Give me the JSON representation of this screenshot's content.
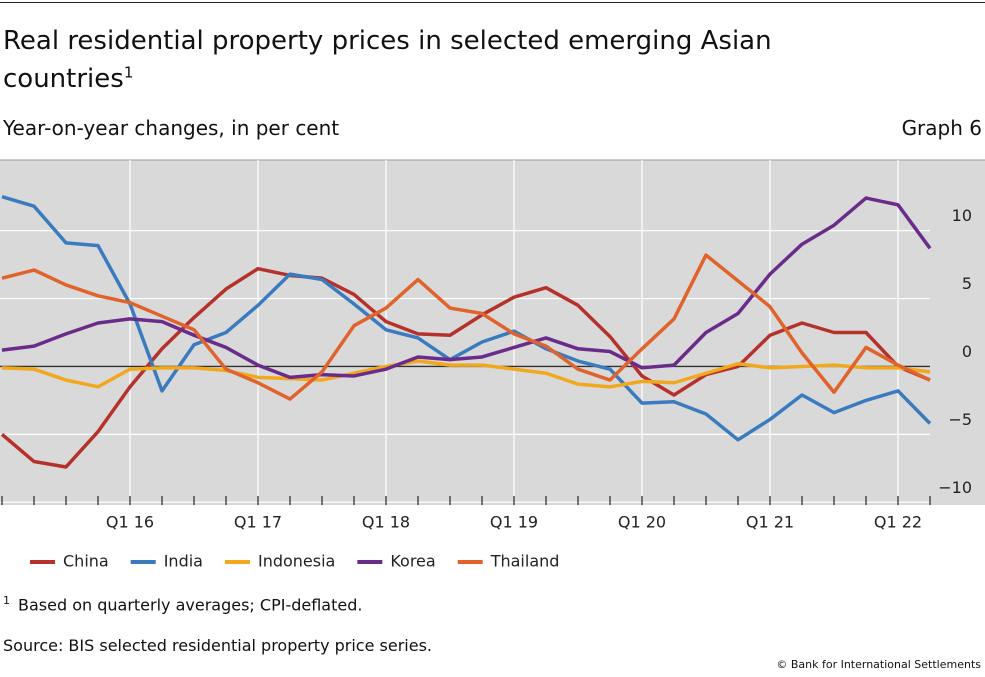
{
  "chart_data": {
    "type": "line",
    "title": "Real residential property prices in selected emerging Asian countries",
    "title_superscript": "1",
    "subtitle": "Year-on-year changes, in per cent",
    "graph_label": "Graph 6",
    "footnote_marker": "1",
    "footnote": "Based on quarterly averages; CPI-deflated.",
    "source": "Source: BIS selected residential property price series.",
    "copyright": "© Bank for International Settlements",
    "categories": [
      null,
      null,
      null,
      null,
      "Q1 16",
      null,
      null,
      null,
      "Q1 17",
      null,
      null,
      null,
      "Q1 18",
      null,
      null,
      null,
      "Q1 19",
      null,
      null,
      null,
      "Q1 20",
      null,
      null,
      null,
      "Q1 21",
      null,
      null,
      null,
      "Q1 22",
      null
    ],
    "ylim": [
      -10.2,
      15.2
    ],
    "yticks": [
      {
        "value": -10,
        "label": "−10"
      },
      {
        "value": -5,
        "label": "−5"
      },
      0,
      5,
      10
    ],
    "grid": true,
    "background": "#d9d9d9",
    "series": [
      {
        "name": "China",
        "color": "#b5312c",
        "values": [
          -5.0,
          -7.0,
          -7.4,
          -4.8,
          -1.5,
          1.3,
          3.6,
          5.7,
          7.2,
          6.7,
          6.5,
          5.3,
          3.3,
          2.4,
          2.3,
          3.8,
          5.1,
          5.8,
          4.5,
          2.2,
          -0.7,
          -2.1,
          -0.6,
          0.0,
          2.3,
          3.2,
          2.5,
          2.5,
          0.0,
          -1.0
        ]
      },
      {
        "name": "India",
        "color": "#3a7bbf",
        "values": [
          12.5,
          11.8,
          9.1,
          8.9,
          4.6,
          -1.8,
          1.6,
          2.5,
          4.5,
          6.8,
          6.4,
          4.6,
          2.7,
          2.1,
          0.5,
          1.8,
          2.6,
          1.3,
          0.4,
          -0.2,
          -2.7,
          -2.6,
          -3.5,
          -5.4,
          -3.9,
          -2.1,
          -3.4,
          -2.5,
          -1.8,
          -4.2
        ]
      },
      {
        "name": "Indonesia",
        "color": "#f2a81d",
        "values": [
          -0.1,
          -0.2,
          -1.0,
          -1.5,
          -0.2,
          -0.1,
          -0.1,
          -0.3,
          -0.8,
          -0.9,
          -1.0,
          -0.5,
          0.0,
          0.4,
          0.1,
          0.1,
          -0.2,
          -0.5,
          -1.3,
          -1.5,
          -1.1,
          -1.2,
          -0.5,
          0.2,
          -0.1,
          0.0,
          0.1,
          -0.1,
          -0.1,
          -0.4
        ]
      },
      {
        "name": "Korea",
        "color": "#6a2c8a",
        "values": [
          1.2,
          1.5,
          2.4,
          3.2,
          3.5,
          3.3,
          2.3,
          1.4,
          0.1,
          -0.8,
          -0.6,
          -0.7,
          -0.2,
          0.7,
          0.5,
          0.7,
          1.4,
          2.1,
          1.3,
          1.1,
          -0.1,
          0.1,
          2.5,
          3.9,
          6.8,
          9.0,
          10.4,
          12.4,
          11.9,
          8.7
        ]
      },
      {
        "name": "Thailand",
        "color": "#e0632b",
        "values": [
          6.5,
          7.1,
          6.0,
          5.2,
          4.7,
          3.7,
          2.7,
          -0.2,
          -1.2,
          -2.4,
          -0.4,
          3.0,
          4.3,
          6.4,
          4.3,
          3.9,
          2.4,
          1.5,
          -0.2,
          -1.0,
          1.3,
          3.5,
          8.2,
          6.3,
          4.4,
          1.0,
          -1.9,
          1.4,
          0.1,
          -1.0
        ]
      }
    ]
  }
}
